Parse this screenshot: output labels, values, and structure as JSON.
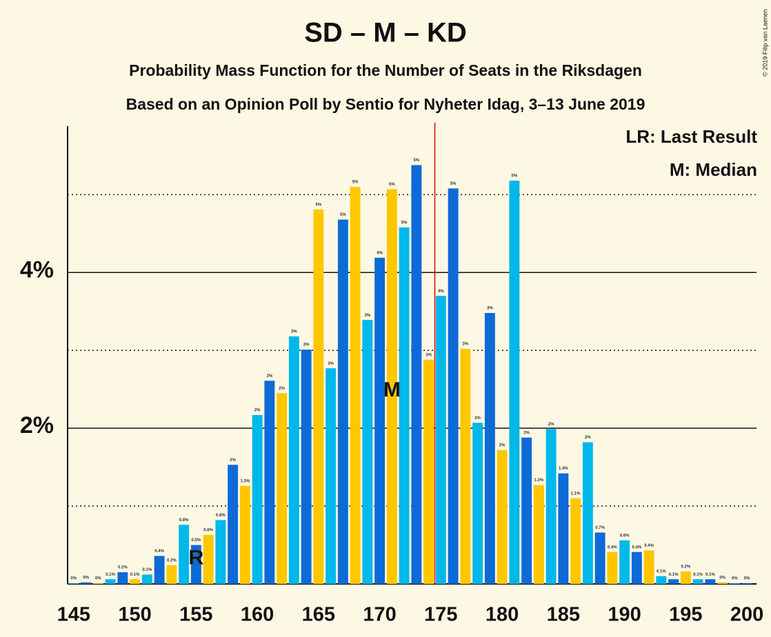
{
  "chart_data": {
    "type": "bar",
    "title": "SD – M – KD",
    "subtitle": "Probability Mass Function for the Number of Seats in the Riksdagen",
    "subtitle2": "Based on an Opinion Poll by Sentio for Nyheter Idag, 3–13 June 2019",
    "copyright": "© 2019 Filip van Laenen",
    "legend_notes": [
      "LR: Last Result",
      "M: Median"
    ],
    "x": [
      145,
      146,
      147,
      148,
      149,
      150,
      151,
      152,
      153,
      154,
      155,
      156,
      157,
      158,
      159,
      160,
      161,
      162,
      163,
      164,
      165,
      166,
      167,
      168,
      169,
      170,
      171,
      172,
      173,
      174,
      175,
      176,
      177,
      178,
      179,
      180,
      181,
      182,
      183,
      184,
      185,
      186,
      187,
      188,
      189,
      190,
      191,
      192,
      193,
      194,
      195,
      196,
      197,
      198,
      199,
      200
    ],
    "values": [
      0.01,
      0.02,
      0.01,
      0.06,
      0.15,
      0.06,
      0.12,
      0.36,
      0.24,
      0.76,
      0.5,
      0.63,
      0.82,
      1.53,
      1.26,
      2.17,
      2.61,
      2.45,
      3.18,
      3.01,
      4.81,
      2.77,
      4.68,
      5.1,
      3.39,
      4.19,
      5.07,
      4.58,
      5.38,
      2.88,
      3.7,
      5.08,
      3.02,
      2.07,
      3.48,
      1.72,
      5.18,
      1.88,
      1.27,
      1.99,
      1.42,
      1.1,
      1.82,
      0.66,
      0.41,
      0.56,
      0.41,
      0.43,
      0.1,
      0.06,
      0.16,
      0.06,
      0.06,
      0.02,
      0.01,
      0.01
    ],
    "value_labels": [
      "0%",
      "0%",
      "0%",
      "0.1%",
      "0.2%",
      "0.1%",
      "0.1%",
      "0.4%",
      "0.2%",
      "0.8%",
      "0.5%",
      "0.6%",
      "0.8%",
      "2%",
      "1.3%",
      "2%",
      "3%",
      "2%",
      "3%",
      "3%",
      "5%",
      "3%",
      "5%",
      "5%",
      "3%",
      "4%",
      "5%",
      "5%",
      "5%",
      "3%",
      "4%",
      "5%",
      "3%",
      "2%",
      "3%",
      "2%",
      "5%",
      "2%",
      "1.3%",
      "2%",
      "1.4%",
      "1.1%",
      "2%",
      "0.7%",
      "0.4%",
      "0.6%",
      "0.4%",
      "0.4%",
      "0.1%",
      "0.1%",
      "0.2%",
      "0.1%",
      "0.1%",
      "0%",
      "0%",
      "0%"
    ],
    "color_cycle": [
      "#00b8ea",
      "#0d6ad6",
      "#ffc700"
    ],
    "xlim": [
      144.5,
      200.5
    ],
    "xticks": [
      145,
      150,
      155,
      160,
      165,
      170,
      175,
      180,
      185,
      190,
      195,
      200
    ],
    "ylim": [
      0,
      5.88
    ],
    "yticks": [
      {
        "value": 2,
        "label": "2%"
      },
      {
        "value": 4,
        "label": "4%"
      }
    ],
    "dotted_grid": [
      1,
      3,
      5
    ],
    "majority_line": 174.5,
    "majority_color": "#e00000",
    "markers": [
      {
        "x": 155,
        "label": "R"
      },
      {
        "x": 171,
        "label": "M"
      }
    ]
  }
}
